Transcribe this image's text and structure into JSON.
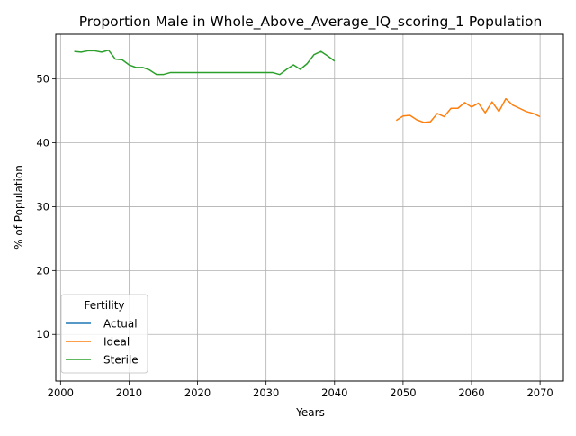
{
  "chart_data": {
    "type": "line",
    "title": "Proportion Male in Whole_Above_Average_IQ_scoring_1 Population",
    "xlabel": "Years",
    "ylabel": "% of Population",
    "xlim": [
      1999.3,
      2073.4
    ],
    "ylim": [
      2.7,
      57.0
    ],
    "xticks": [
      2000,
      2010,
      2020,
      2030,
      2040,
      2050,
      2060,
      2070
    ],
    "yticks": [
      10,
      20,
      30,
      40,
      50
    ],
    "grid": true,
    "legend": {
      "title": "Fertility",
      "position": "lower-left"
    },
    "series": [
      {
        "name": "Actual",
        "color": "#1f77b4",
        "x": [],
        "y": []
      },
      {
        "name": "Ideal",
        "color": "#ff7f0e",
        "x": [
          2049,
          2050,
          2051,
          2052,
          2053,
          2054,
          2055,
          2056,
          2057,
          2058,
          2059,
          2060,
          2061,
          2062,
          2063,
          2064,
          2065,
          2066,
          2067,
          2068,
          2069,
          2070
        ],
        "y": [
          43.5,
          44.2,
          44.3,
          43.6,
          43.2,
          43.3,
          44.6,
          44.1,
          45.4,
          45.4,
          46.3,
          45.6,
          46.2,
          44.7,
          46.4,
          44.9,
          46.9,
          45.9,
          45.4,
          44.9,
          44.6,
          44.1
        ]
      },
      {
        "name": "Sterile",
        "color": "#2ca02c",
        "x": [
          2002,
          2003,
          2004,
          2005,
          2006,
          2007,
          2008,
          2009,
          2010,
          2011,
          2012,
          2013,
          2014,
          2015,
          2016,
          2017,
          2018,
          2019,
          2020,
          2021,
          2022,
          2023,
          2024,
          2025,
          2026,
          2027,
          2028,
          2029,
          2030,
          2031,
          2032,
          2033,
          2034,
          2035,
          2036,
          2037,
          2038,
          2039,
          2040
        ],
        "y": [
          54.3,
          54.2,
          54.4,
          54.4,
          54.2,
          54.5,
          53.1,
          53.0,
          52.2,
          51.8,
          51.8,
          51.4,
          50.7,
          50.7,
          51.0,
          51.0,
          51.0,
          51.0,
          51.0,
          51.0,
          51.0,
          51.0,
          51.0,
          51.0,
          51.0,
          51.0,
          51.0,
          51.0,
          51.0,
          51.0,
          50.7,
          51.5,
          52.2,
          51.5,
          52.4,
          53.8,
          54.3,
          53.6,
          52.8
        ]
      }
    ]
  }
}
